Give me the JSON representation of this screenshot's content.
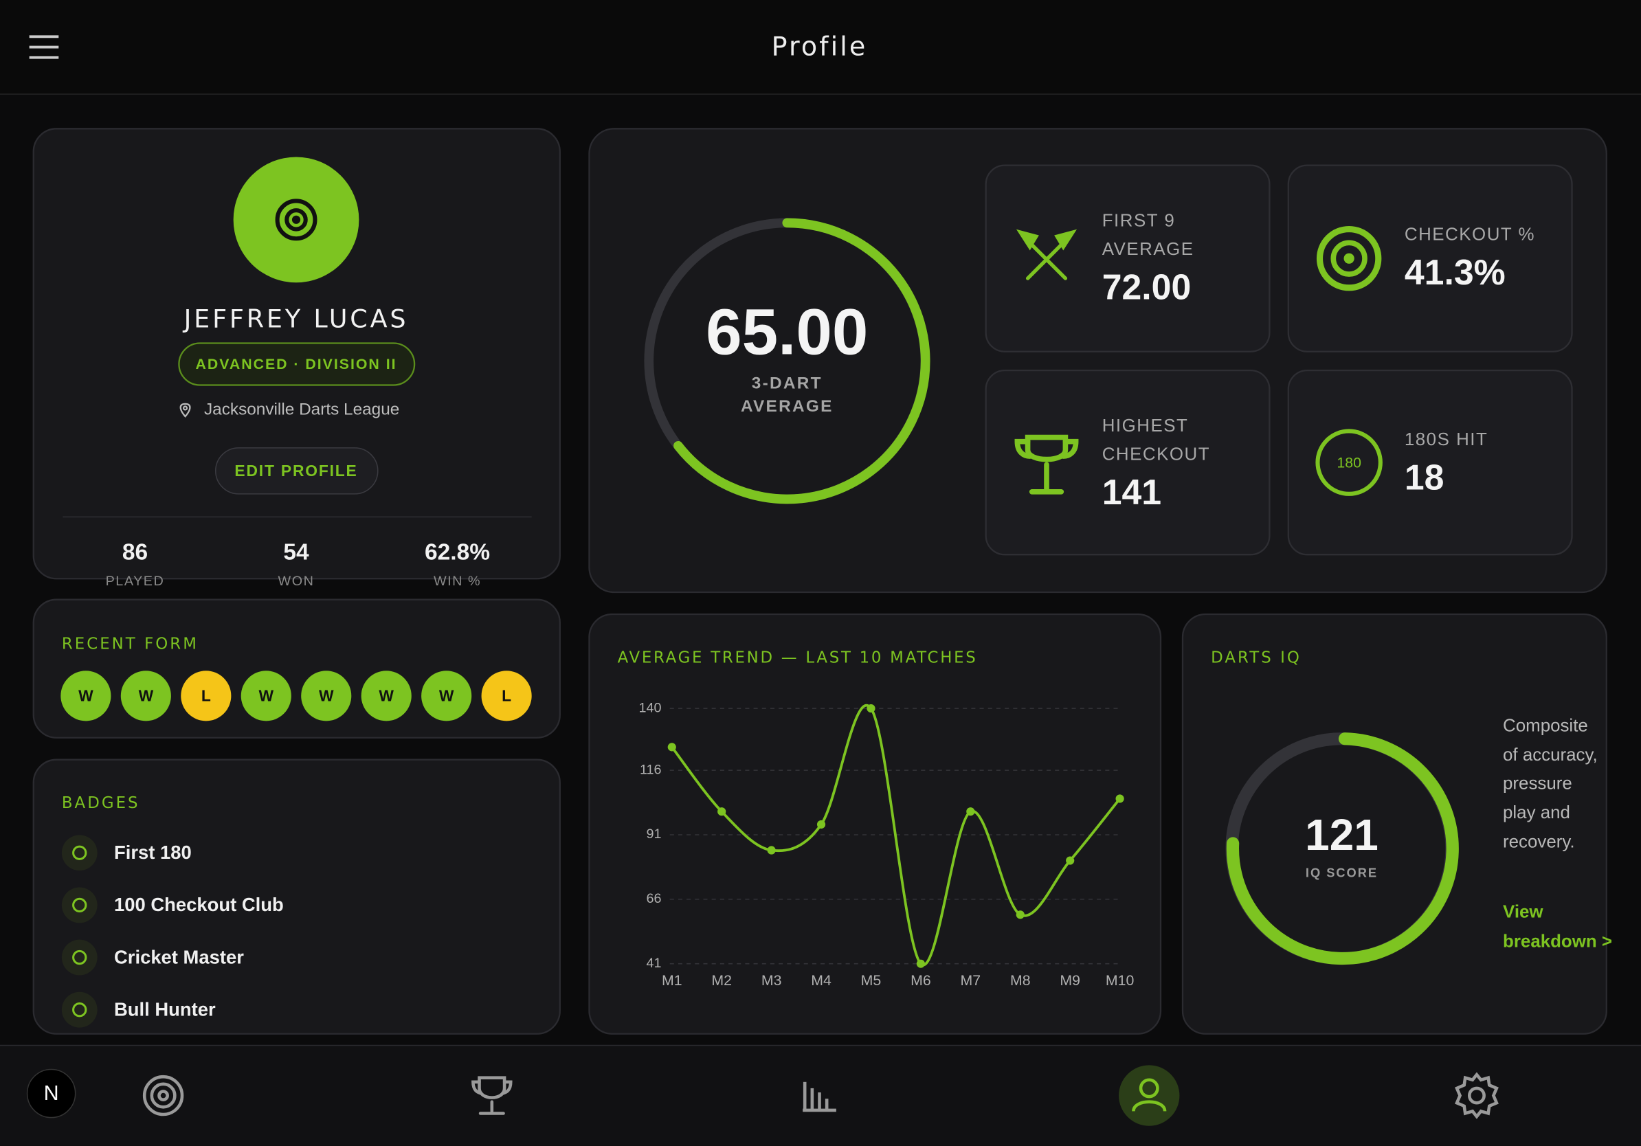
{
  "header": {
    "title": "Profile"
  },
  "profile": {
    "name": "JEFFREY LUCAS",
    "division": "ADVANCED · DIVISION II",
    "league": "Jacksonville Darts League",
    "edit_button": "EDIT PROFILE",
    "stats": [
      {
        "value": "86",
        "label": "PLAYED"
      },
      {
        "value": "54",
        "label": "WON"
      },
      {
        "value": "62.8%",
        "label": "WIN %"
      }
    ]
  },
  "recent_form": {
    "title": "RECENT FORM",
    "results": [
      "W",
      "W",
      "L",
      "W",
      "W",
      "W",
      "W",
      "L"
    ]
  },
  "badges": {
    "title": "BADGES",
    "items": [
      "First 180",
      "100 Checkout Club",
      "Cricket Master",
      "Bull Hunter"
    ]
  },
  "average": {
    "value": "65.00",
    "label_lines": [
      "3-DART",
      "AVERAGE"
    ]
  },
  "stat_tiles": [
    {
      "label_lines": [
        "FIRST 9",
        "AVERAGE"
      ],
      "value": "72.00"
    },
    {
      "label_lines": [
        "CHECKOUT %"
      ],
      "value": "41.3%"
    },
    {
      "label_lines": [
        "HIGHEST",
        "CHECKOUT"
      ],
      "value": "141"
    },
    {
      "label_lines": [
        "180S HIT"
      ],
      "value": "18",
      "icon_text": "180"
    }
  ],
  "chart_data": {
    "type": "line",
    "title": "AVERAGE TREND — LAST 10 MATCHES",
    "categories": [
      "M1",
      "M2",
      "M3",
      "M4",
      "M5",
      "M6",
      "M7",
      "M8",
      "M9",
      "M10"
    ],
    "values": [
      125,
      100,
      85,
      95,
      140,
      41,
      100,
      60,
      81,
      105
    ],
    "color": "#7dc421",
    "ylim": [
      41,
      140
    ],
    "yticks": [
      140,
      116,
      91,
      66,
      41
    ],
    "grid": true
  },
  "darts_iq": {
    "title": "DARTS IQ",
    "score": "121",
    "score_label": "IQ SCORE",
    "description": "Composite of accuracy, pressure play and recovery.",
    "link": "View breakdown >"
  },
  "nav": {
    "avatar": "N"
  }
}
